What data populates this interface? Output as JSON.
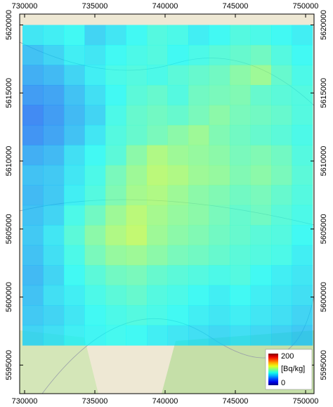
{
  "map": {
    "xlim": [
      729650,
      750600
    ],
    "ylim": [
      5592900,
      5620800
    ],
    "xticks": [
      730000,
      735000,
      740000,
      745000,
      750000
    ],
    "yticks": [
      5595000,
      5600000,
      5605000,
      5610000,
      5615000,
      5620000
    ],
    "raster": {
      "x0": 729850,
      "x1": 750500,
      "y0": 5596450,
      "y1": 5620000,
      "values": [
        [
          70,
          72,
          75,
          65,
          70,
          75,
          80,
          78,
          72,
          75,
          80,
          78,
          75,
          72
        ],
        [
          60,
          65,
          72,
          70,
          75,
          78,
          80,
          75,
          78,
          82,
          85,
          88,
          80,
          75
        ],
        [
          55,
          58,
          65,
          72,
          78,
          80,
          78,
          82,
          85,
          88,
          95,
          100,
          85,
          78
        ],
        [
          50,
          52,
          60,
          68,
          75,
          82,
          85,
          80,
          88,
          90,
          92,
          85,
          82,
          80
        ],
        [
          45,
          50,
          58,
          65,
          78,
          85,
          88,
          85,
          90,
          95,
          90,
          88,
          85,
          80
        ],
        [
          48,
          52,
          60,
          70,
          80,
          85,
          90,
          95,
          100,
          92,
          88,
          85,
          82,
          78
        ],
        [
          55,
          58,
          68,
          75,
          82,
          95,
          105,
          100,
          98,
          95,
          90,
          92,
          88,
          80
        ],
        [
          60,
          62,
          70,
          78,
          90,
          100,
          108,
          105,
          100,
          98,
          92,
          95,
          90,
          82
        ],
        [
          58,
          62,
          72,
          80,
          92,
          102,
          105,
          100,
          95,
          92,
          88,
          90,
          85,
          80
        ],
        [
          60,
          65,
          78,
          88,
          100,
          108,
          102,
          98,
          95,
          90,
          85,
          88,
          82,
          78
        ],
        [
          62,
          70,
          82,
          95,
          105,
          110,
          100,
          95,
          92,
          88,
          85,
          82,
          80,
          75
        ],
        [
          60,
          68,
          78,
          90,
          98,
          100,
          95,
          90,
          88,
          85,
          82,
          80,
          78,
          72
        ],
        [
          58,
          65,
          75,
          82,
          88,
          90,
          85,
          82,
          80,
          78,
          80,
          75,
          72,
          70
        ],
        [
          60,
          68,
          72,
          78,
          82,
          85,
          80,
          78,
          75,
          72,
          75,
          72,
          70,
          68
        ],
        [
          62,
          65,
          70,
          75,
          78,
          80,
          78,
          75,
          72,
          70,
          72,
          70,
          68,
          65
        ],
        [
          65,
          68,
          72,
          74,
          76,
          75,
          72,
          70,
          68,
          66,
          68,
          66,
          64,
          62
        ]
      ]
    },
    "colorbar": {
      "min": 0,
      "max": 200,
      "label": "[Bq/kg]"
    }
  }
}
